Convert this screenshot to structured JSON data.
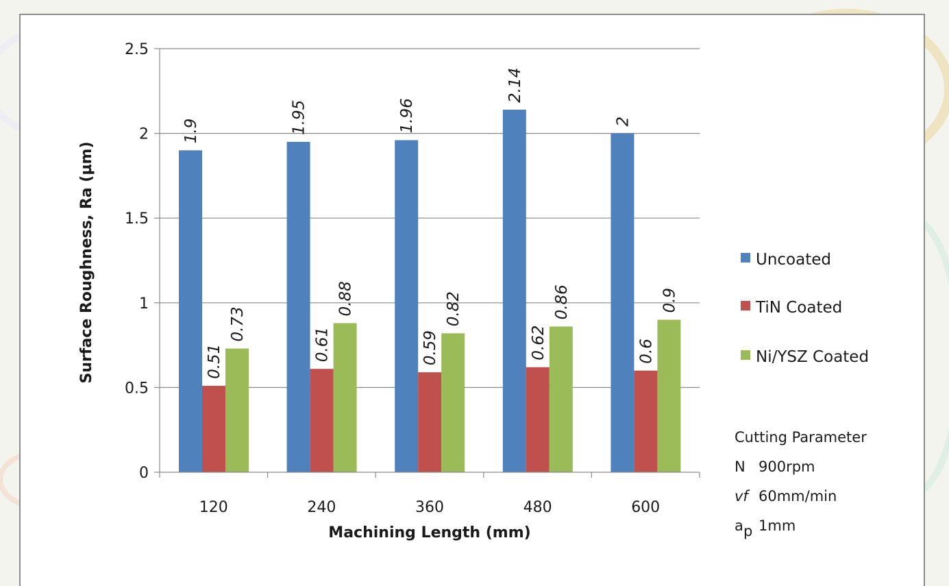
{
  "chart_data": {
    "type": "bar",
    "title": "",
    "xlabel": "Machining Length (mm)",
    "ylabel": "Surface Roughness, Ra (µm)",
    "ylim": [
      0,
      2.5
    ],
    "yticks": [
      "0",
      "0.5",
      "1",
      "1.5",
      "2",
      "2.5"
    ],
    "grid": true,
    "legend_position": "right",
    "categories": [
      "120",
      "240",
      "360",
      "480",
      "600"
    ],
    "series": [
      {
        "name": "Uncoated",
        "color": "#4f81bd",
        "values": [
          1.9,
          1.95,
          1.96,
          2.14,
          2.0
        ],
        "labels": [
          "1.9",
          "1.95",
          "1.96",
          "2.14",
          "2"
        ]
      },
      {
        "name": "TiN Coated",
        "color": "#c0504d",
        "values": [
          0.51,
          0.61,
          0.59,
          0.62,
          0.6
        ],
        "labels": [
          "0.51",
          "0.61",
          "0.59",
          "0.62",
          "0.6"
        ]
      },
      {
        "name": "Ni/YSZ Coated",
        "color": "#9bbb59",
        "values": [
          0.73,
          0.88,
          0.82,
          0.86,
          0.9
        ],
        "labels": [
          "0.73",
          "0.88",
          "0.82",
          "0.86",
          "0.9"
        ]
      }
    ]
  },
  "parameters": {
    "heading": "Cutting Parameter",
    "rows": [
      {
        "symbol": "N",
        "value": "900rpm"
      },
      {
        "symbol": "vf",
        "value": "60mm/min"
      },
      {
        "symbol": "a",
        "subscript": "p",
        "value": "1mm"
      }
    ]
  }
}
